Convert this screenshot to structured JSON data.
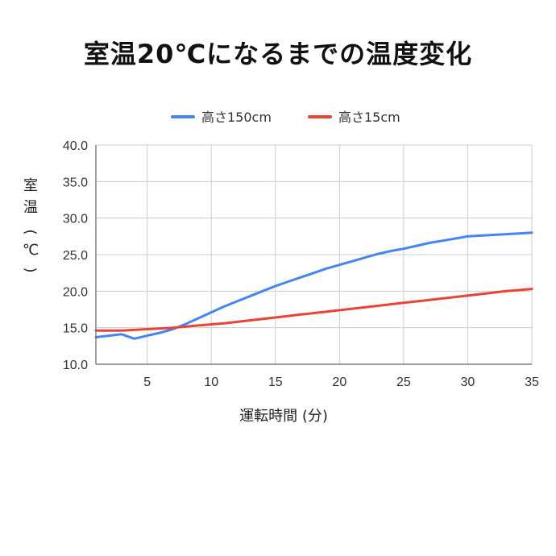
{
  "chart_data": {
    "type": "line",
    "title": "室温20℃になるまでの温度変化",
    "xlabel": "運転時間 (分)",
    "ylabel_chars": [
      "室",
      "温",
      "(",
      "℃",
      ")"
    ],
    "xlim": [
      1,
      35
    ],
    "ylim": [
      10,
      40
    ],
    "x_ticks": [
      5,
      10,
      15,
      20,
      25,
      30,
      35
    ],
    "y_ticks": [
      "10.0",
      "15.0",
      "20.0",
      "25.0",
      "30.0",
      "35.0",
      "40.0"
    ],
    "highlight_tick": "20.0",
    "highlight_color": "#c62828",
    "grid": true,
    "legend_position": "top",
    "series": [
      {
        "name": "高さ150cm",
        "color": "#4285f4",
        "x": [
          1,
          2,
          3,
          4,
          5,
          6,
          7,
          8,
          9,
          10,
          11,
          12,
          13,
          14,
          15,
          16,
          17,
          18,
          19,
          20,
          21,
          22,
          23,
          24,
          25,
          26,
          27,
          28,
          29,
          30,
          31,
          32,
          33,
          34,
          35
        ],
        "values": [
          13.7,
          13.9,
          14.1,
          13.5,
          13.9,
          14.3,
          14.8,
          15.5,
          16.3,
          17.1,
          17.9,
          18.6,
          19.3,
          20.0,
          20.7,
          21.3,
          21.9,
          22.5,
          23.1,
          23.6,
          24.1,
          24.6,
          25.1,
          25.5,
          25.8,
          26.2,
          26.6,
          26.9,
          27.2,
          27.5,
          27.6,
          27.7,
          27.8,
          27.9,
          28.0
        ]
      },
      {
        "name": "高さ15cm",
        "color": "#ea4335",
        "x": [
          1,
          3,
          5,
          7,
          9,
          11,
          13,
          15,
          17,
          19,
          21,
          23,
          25,
          27,
          29,
          31,
          33,
          35
        ],
        "values": [
          14.6,
          14.6,
          14.8,
          15.0,
          15.3,
          15.6,
          16.0,
          16.4,
          16.8,
          17.2,
          17.6,
          18.0,
          18.4,
          18.8,
          19.2,
          19.6,
          20.0,
          20.3
        ]
      }
    ]
  }
}
